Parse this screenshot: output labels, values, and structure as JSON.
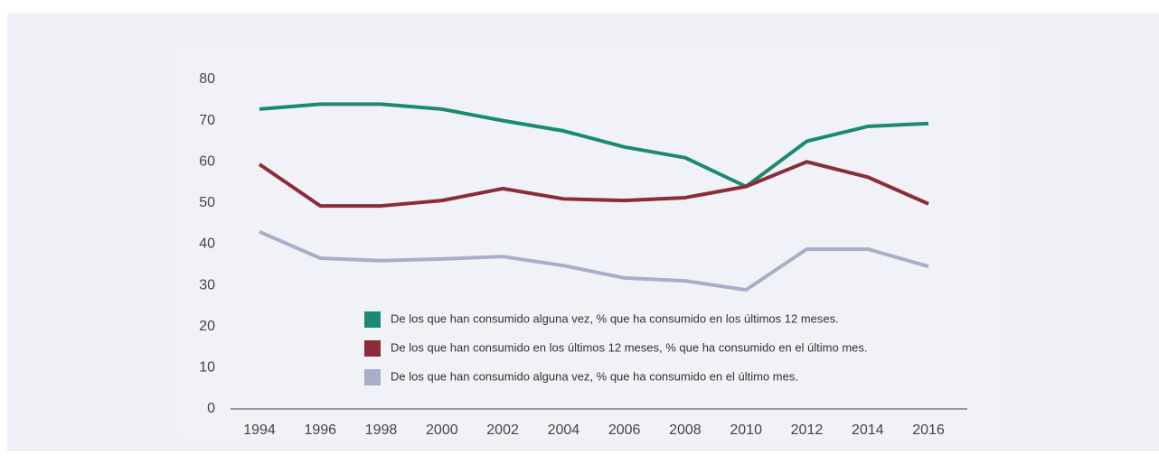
{
  "chart_data": {
    "type": "line",
    "categories": [
      "1994",
      "1996",
      "1998",
      "2000",
      "2002",
      "2004",
      "2006",
      "2008",
      "2010",
      "2012",
      "2014",
      "2016"
    ],
    "series": [
      {
        "name": "De los que han consumido alguna vez, % que ha consumido en los últimos 12 meses.",
        "color": "#1b8a73",
        "values": [
          72.8,
          74,
          74,
          72.8,
          70,
          67.5,
          63.6,
          61,
          54,
          65,
          68.6,
          69.3
        ]
      },
      {
        "name": "De los que han consumido en los últimos 12 meses, % que ha consumido en el último mes.",
        "color": "#8c2b3a",
        "values": [
          59.4,
          49.3,
          49.3,
          50.6,
          53.5,
          51,
          50.6,
          51.3,
          54,
          60,
          56.3,
          49.8
        ]
      },
      {
        "name": "De los que han consumido alguna vez, % que ha consumido en el último mes.",
        "color": "#a8aec8",
        "values": [
          43,
          36.6,
          36,
          36.4,
          37,
          34.8,
          31.8,
          31.1,
          28.9,
          38.8,
          38.8,
          34.6
        ]
      }
    ],
    "ylim": [
      0,
      80
    ],
    "yticks": [
      0,
      10,
      20,
      30,
      40,
      50,
      60,
      70,
      80
    ],
    "grid": false
  }
}
